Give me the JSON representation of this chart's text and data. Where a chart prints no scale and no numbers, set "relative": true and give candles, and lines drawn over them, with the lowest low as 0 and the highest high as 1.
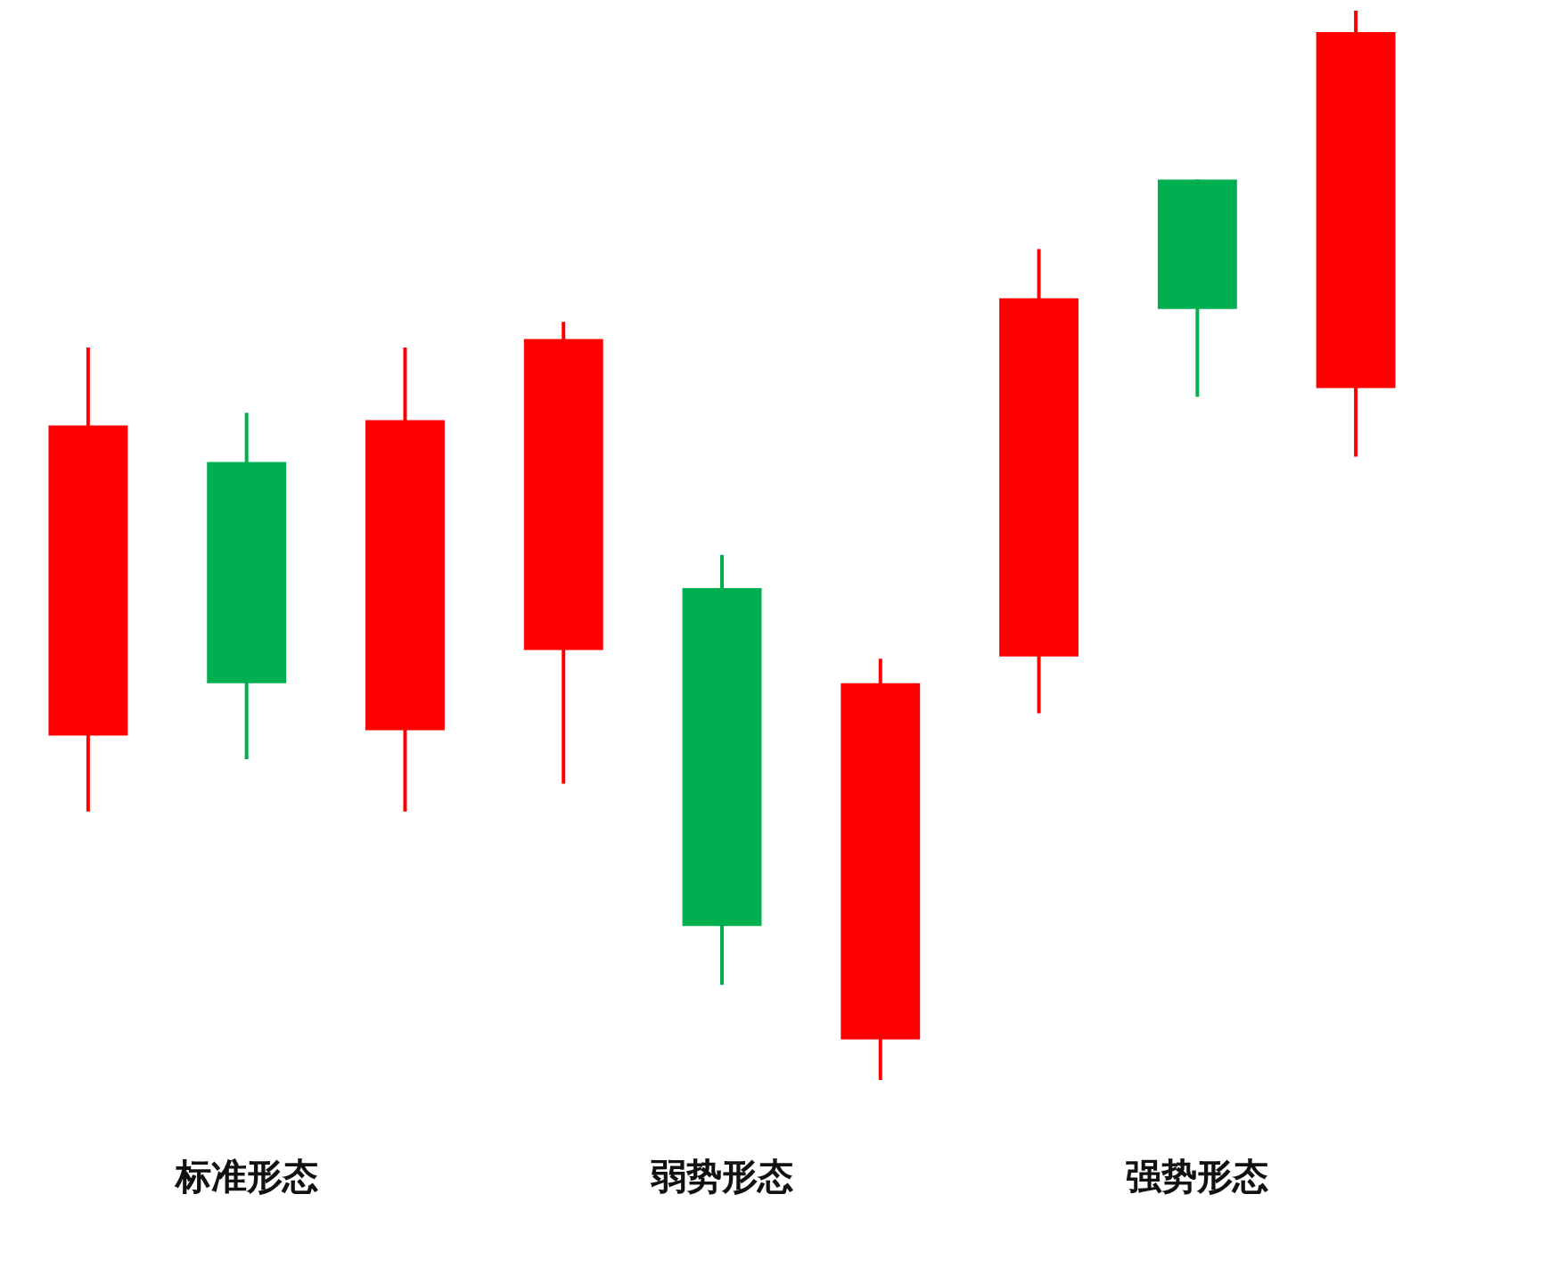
{
  "chart_data": {
    "type": "candlestick",
    "relative": true,
    "categories": [
      null,
      null,
      null,
      null,
      null,
      null,
      null,
      null,
      null
    ],
    "ohlc": [
      [
        0.322,
        0.685,
        0.251,
        0.612
      ],
      [
        0.578,
        0.624,
        0.3,
        0.371
      ],
      [
        0.327,
        0.685,
        0.251,
        0.617
      ],
      [
        0.402,
        0.709,
        0.277,
        0.693
      ],
      [
        0.46,
        0.491,
        0.089,
        0.144
      ],
      [
        0.038,
        0.394,
        0,
        0.371
      ],
      [
        0.396,
        0.777,
        0.343,
        0.731
      ],
      [
        0.842,
        0.842,
        0.639,
        0.721
      ],
      [
        0.647,
        1,
        0.583,
        0.98
      ]
    ],
    "colors": [
      "#ff0000",
      "#00b050",
      "#ff0000",
      "#ff0000",
      "#00b050",
      "#ff0000",
      "#ff0000",
      "#00b050",
      "#ff0000"
    ],
    "annotations": [
      "标准形态",
      "弱势形态",
      "强势形态"
    ]
  }
}
